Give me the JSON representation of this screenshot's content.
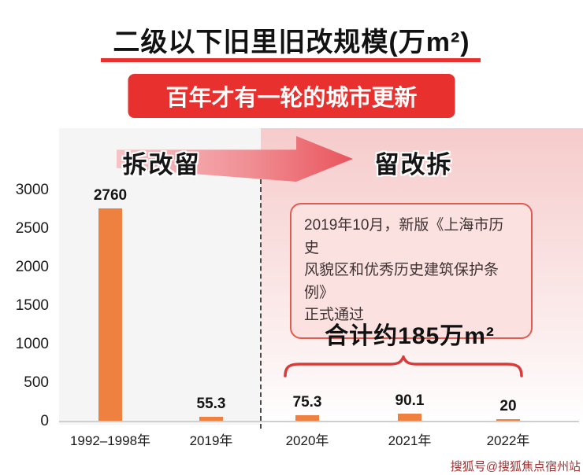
{
  "title": {
    "text": "二级以下旧里旧改规模(万m²)"
  },
  "banner": {
    "label": "百年才有一轮的城市更新"
  },
  "phases": {
    "left_label": "拆改留",
    "right_label": "留改拆"
  },
  "annotation": {
    "text": "2019年10月，新版《上海市历史\n风貌区和优秀历史建筑保护条例》\n正式通过"
  },
  "total": {
    "label": "合计约185万m²"
  },
  "watermark": {
    "text": "搜狐号@搜狐焦点宿州站"
  },
  "chart_data": {
    "type": "bar",
    "title": "二级以下旧里旧改规模(万m²)",
    "categories": [
      "1992–1998年",
      "2019年",
      "2020年",
      "2021年",
      "2022年"
    ],
    "values": [
      2760,
      55.3,
      75.3,
      90.1,
      20
    ],
    "bar_labels": [
      "2760",
      "55.3",
      "75.3",
      "90.1",
      "20"
    ],
    "ylim": [
      0,
      3000
    ],
    "yticks": [
      0,
      500,
      1000,
      1500,
      2000,
      2500,
      3000
    ],
    "xlabel": "",
    "ylabel": "",
    "grid": false,
    "legend": "none",
    "bar_color": "#EE8040",
    "divider_after_category": "2019年",
    "total_of_last_three": "合计约185万m²"
  },
  "colors": {
    "accent_red": "#E8312E",
    "bar_orange": "#EE8040",
    "annotation_bg": "#FBE2E1",
    "annotation_border": "#E25B50",
    "pink_zone_top": "#F6CBCB",
    "brace_red": "#D93A3A"
  }
}
